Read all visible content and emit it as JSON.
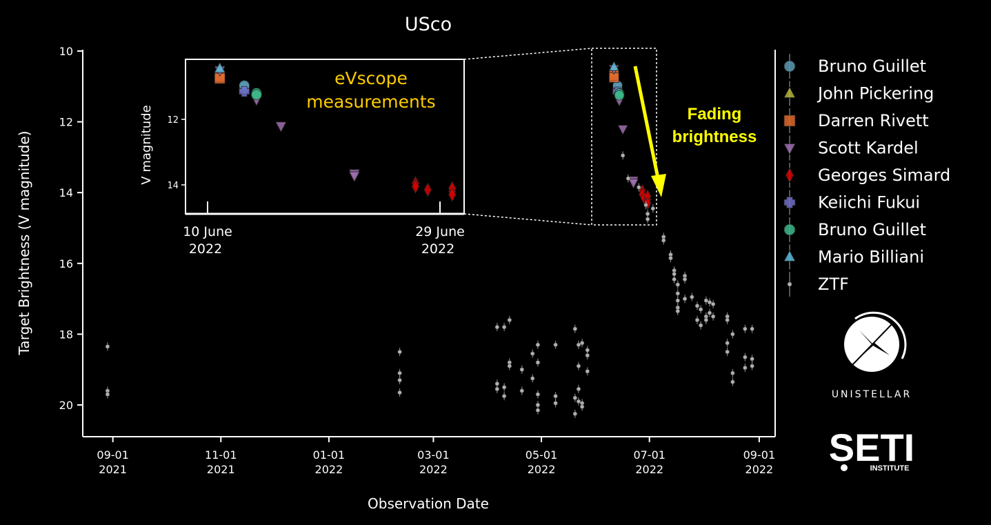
{
  "chart_data": {
    "type": "scatter",
    "title": "USco",
    "xlabel": "Observation Date",
    "ylabel": "Target Brightness (V magnitude)",
    "y_inverted": true,
    "ylim": [
      21,
      10
    ],
    "xlim": [
      "2021-08-15",
      "2022-09-10"
    ],
    "x_ticks": [
      {
        "date": "2021-09-01",
        "line1": "09-01",
        "line2": "2021"
      },
      {
        "date": "2021-11-01",
        "line1": "11-01",
        "line2": "2021"
      },
      {
        "date": "2022-01-01",
        "line1": "01-01",
        "line2": "2022"
      },
      {
        "date": "2022-03-01",
        "line1": "03-01",
        "line2": "2022"
      },
      {
        "date": "2022-05-01",
        "line1": "05-01",
        "line2": "2022"
      },
      {
        "date": "2022-07-01",
        "line1": "07-01",
        "line2": "2022"
      },
      {
        "date": "2022-09-01",
        "line1": "09-01",
        "line2": "2022"
      }
    ],
    "y_ticks": [
      "10",
      "12",
      "14",
      "16",
      "18",
      "20"
    ],
    "grid": false,
    "legend_position": "right",
    "series": [
      {
        "name": "Bruno Guillet",
        "marker": "circle",
        "color": "#5b9bb5",
        "points": [
          {
            "x": "2022-06-13",
            "y": 11.0
          },
          {
            "x": "2022-06-13",
            "y": 11.05
          },
          {
            "x": "2022-06-13",
            "y": 10.97
          }
        ]
      },
      {
        "name": "John Pickering",
        "marker": "triangle-up",
        "color": "#b5b53a",
        "points": [
          {
            "x": "2022-06-11",
            "y": 10.55
          },
          {
            "x": "2022-06-11",
            "y": 10.62
          }
        ]
      },
      {
        "name": "Darren Rivett",
        "marker": "square",
        "color": "#e06a2e",
        "points": [
          {
            "x": "2022-06-11",
            "y": 10.68
          },
          {
            "x": "2022-06-11",
            "y": 10.75
          }
        ]
      },
      {
        "name": "Scott Kardel",
        "marker": "triangle-down",
        "color": "#a070b0",
        "points": [
          {
            "x": "2022-06-11",
            "y": 10.5
          },
          {
            "x": "2022-06-14",
            "y": 11.3
          },
          {
            "x": "2022-06-14",
            "y": 11.4
          },
          {
            "x": "2022-06-16",
            "y": 12.2
          },
          {
            "x": "2022-06-22",
            "y": 13.65
          },
          {
            "x": "2022-06-22",
            "y": 13.72
          }
        ]
      },
      {
        "name": "Georges Simard",
        "marker": "diamond",
        "color": "#dd0000",
        "points": [
          {
            "x": "2022-06-27",
            "y": 13.95
          },
          {
            "x": "2022-06-27",
            "y": 14.05
          },
          {
            "x": "2022-06-28",
            "y": 14.15
          },
          {
            "x": "2022-06-30",
            "y": 14.2
          },
          {
            "x": "2022-06-30",
            "y": 14.1
          },
          {
            "x": "2022-06-30",
            "y": 14.3
          }
        ]
      },
      {
        "name": "Keiichi Fukui",
        "marker": "plus",
        "color": "#6e6ec8",
        "points": [
          {
            "x": "2022-06-13",
            "y": 11.15
          }
        ]
      },
      {
        "name": "Bruno Guillet",
        "marker": "circle",
        "color": "#3cb88a",
        "points": [
          {
            "x": "2022-06-14",
            "y": 11.2
          },
          {
            "x": "2022-06-14",
            "y": 11.25
          }
        ]
      },
      {
        "name": "Mario Billiani",
        "marker": "triangle-up",
        "color": "#5ab8d8",
        "points": [
          {
            "x": "2022-06-11",
            "y": 10.45
          }
        ]
      },
      {
        "name": "ZTF",
        "marker": "dot",
        "color": "#b0b0b0",
        "points": [
          {
            "x": "2021-08-29",
            "y": 18.35
          },
          {
            "x": "2021-08-29",
            "y": 19.6
          },
          {
            "x": "2021-08-29",
            "y": 19.7
          },
          {
            "x": "2022-02-10",
            "y": 18.5
          },
          {
            "x": "2022-02-10",
            "y": 19.1
          },
          {
            "x": "2022-02-10",
            "y": 19.3
          },
          {
            "x": "2022-02-10",
            "y": 19.65
          },
          {
            "x": "2022-04-06",
            "y": 17.8
          },
          {
            "x": "2022-04-06",
            "y": 19.4
          },
          {
            "x": "2022-04-06",
            "y": 19.55
          },
          {
            "x": "2022-04-10",
            "y": 17.8
          },
          {
            "x": "2022-04-10",
            "y": 19.5
          },
          {
            "x": "2022-04-10",
            "y": 19.75
          },
          {
            "x": "2022-04-13",
            "y": 17.6
          },
          {
            "x": "2022-04-13",
            "y": 18.8
          },
          {
            "x": "2022-04-13",
            "y": 18.9
          },
          {
            "x": "2022-04-20",
            "y": 19.0
          },
          {
            "x": "2022-04-20",
            "y": 19.6
          },
          {
            "x": "2022-04-26",
            "y": 18.55
          },
          {
            "x": "2022-04-26",
            "y": 19.25
          },
          {
            "x": "2022-04-29",
            "y": 18.3
          },
          {
            "x": "2022-04-29",
            "y": 18.8
          },
          {
            "x": "2022-04-29",
            "y": 19.7
          },
          {
            "x": "2022-04-29",
            "y": 20.0
          },
          {
            "x": "2022-04-29",
            "y": 20.15
          },
          {
            "x": "2022-05-09",
            "y": 18.3
          },
          {
            "x": "2022-05-09",
            "y": 19.75
          },
          {
            "x": "2022-05-09",
            "y": 19.95
          },
          {
            "x": "2022-05-20",
            "y": 17.85
          },
          {
            "x": "2022-05-20",
            "y": 19.8
          },
          {
            "x": "2022-05-20",
            "y": 20.25
          },
          {
            "x": "2022-05-22",
            "y": 18.3
          },
          {
            "x": "2022-05-22",
            "y": 18.9
          },
          {
            "x": "2022-05-22",
            "y": 19.55
          },
          {
            "x": "2022-05-22",
            "y": 19.9
          },
          {
            "x": "2022-05-24",
            "y": 18.25
          },
          {
            "x": "2022-05-24",
            "y": 19.95
          },
          {
            "x": "2022-05-24",
            "y": 20.05
          },
          {
            "x": "2022-05-27",
            "y": 18.45
          },
          {
            "x": "2022-05-27",
            "y": 18.6
          },
          {
            "x": "2022-05-27",
            "y": 19.05
          },
          {
            "x": "2022-06-16",
            "y": 12.95
          },
          {
            "x": "2022-06-19",
            "y": 13.6
          },
          {
            "x": "2022-06-25",
            "y": 13.85
          },
          {
            "x": "2022-06-29",
            "y": 14.35
          },
          {
            "x": "2022-06-30",
            "y": 14.6
          },
          {
            "x": "2022-06-30",
            "y": 14.75
          },
          {
            "x": "2022-07-03",
            "y": 14.45
          },
          {
            "x": "2022-07-09",
            "y": 15.25
          },
          {
            "x": "2022-07-09",
            "y": 15.35
          },
          {
            "x": "2022-07-13",
            "y": 15.75
          },
          {
            "x": "2022-07-13",
            "y": 15.85
          },
          {
            "x": "2022-07-15",
            "y": 16.2
          },
          {
            "x": "2022-07-15",
            "y": 16.3
          },
          {
            "x": "2022-07-15",
            "y": 16.45
          },
          {
            "x": "2022-07-17",
            "y": 16.6
          },
          {
            "x": "2022-07-17",
            "y": 16.85
          },
          {
            "x": "2022-07-17",
            "y": 17.05
          },
          {
            "x": "2022-07-17",
            "y": 17.25
          },
          {
            "x": "2022-07-17",
            "y": 17.35
          },
          {
            "x": "2022-07-21",
            "y": 16.35
          },
          {
            "x": "2022-07-21",
            "y": 16.45
          },
          {
            "x": "2022-07-21",
            "y": 17.0
          },
          {
            "x": "2022-07-25",
            "y": 16.95
          },
          {
            "x": "2022-07-28",
            "y": 17.2
          },
          {
            "x": "2022-07-28",
            "y": 17.6
          },
          {
            "x": "2022-07-30",
            "y": 17.3
          },
          {
            "x": "2022-07-30",
            "y": 17.75
          },
          {
            "x": "2022-08-02",
            "y": 17.05
          },
          {
            "x": "2022-08-02",
            "y": 17.5
          },
          {
            "x": "2022-08-02",
            "y": 17.6
          },
          {
            "x": "2022-08-04",
            "y": 17.1
          },
          {
            "x": "2022-08-04",
            "y": 17.4
          },
          {
            "x": "2022-08-06",
            "y": 17.15
          },
          {
            "x": "2022-08-06",
            "y": 17.5
          },
          {
            "x": "2022-08-14",
            "y": 17.5
          },
          {
            "x": "2022-08-14",
            "y": 17.6
          },
          {
            "x": "2022-08-14",
            "y": 18.25
          },
          {
            "x": "2022-08-14",
            "y": 18.5
          },
          {
            "x": "2022-08-17",
            "y": 18.0
          },
          {
            "x": "2022-08-17",
            "y": 19.1
          },
          {
            "x": "2022-08-17",
            "y": 19.35
          },
          {
            "x": "2022-08-24",
            "y": 17.85
          },
          {
            "x": "2022-08-24",
            "y": 18.65
          },
          {
            "x": "2022-08-24",
            "y": 18.95
          },
          {
            "x": "2022-08-28",
            "y": 17.85
          },
          {
            "x": "2022-08-28",
            "y": 18.7
          },
          {
            "x": "2022-08-28",
            "y": 18.9
          }
        ]
      }
    ],
    "annotations": [
      {
        "text_lines": [
          "Fading",
          "brightness"
        ],
        "color": "#ffff00"
      }
    ],
    "inset": {
      "title_lines": [
        "eVscope",
        "measurements"
      ],
      "title_color": "#ffcc00",
      "ylabel": "V magnitude",
      "y_inverted": true,
      "ylim": [
        14.8,
        10.2
      ],
      "y_ticks": [
        "12",
        "14"
      ],
      "xlim": [
        "2022-06-09",
        "2022-07-02"
      ],
      "x_ticks": [
        {
          "date": "2022-06-10",
          "line1": "10 June",
          "line2": "2022"
        },
        {
          "date": "2022-06-29",
          "line1": "29 June",
          "line2": "2022"
        }
      ]
    }
  },
  "logos": {
    "unistellar": {
      "icon": "unistellar-star-logo",
      "text": "UNISTELLAR"
    },
    "seti": {
      "icon": "seti-logo",
      "text": "SETI",
      "subtext": "INSTITUTE"
    }
  }
}
